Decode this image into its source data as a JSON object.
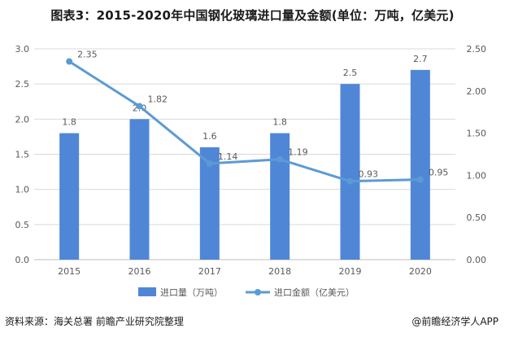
{
  "title": {
    "prefix": "图表3：",
    "main": "2015-2020年中国钢化玻璃进口量及金额(单位：万吨，亿美元)"
  },
  "chart_data": {
    "type": "bar",
    "title": "2015-2020年中国钢化玻璃进口量及金额(单位：万吨，亿美元)",
    "categories": [
      "2015",
      "2016",
      "2017",
      "2018",
      "2019",
      "2020"
    ],
    "series": [
      {
        "name": "进口量（万吨）",
        "type": "bar",
        "axis": "left",
        "values": [
          1.8,
          2.0,
          1.6,
          1.8,
          2.5,
          2.7
        ],
        "labels": [
          "1.8",
          "2.0",
          "1.6",
          "1.8",
          "2.5",
          "2.7"
        ]
      },
      {
        "name": "进口金额（亿美元）",
        "type": "line",
        "axis": "right",
        "values": [
          2.35,
          1.82,
          1.14,
          1.19,
          0.93,
          0.95
        ],
        "labels": [
          "2.35",
          "1.82",
          "1.14",
          "1.19",
          "0.93",
          "0.95"
        ]
      }
    ],
    "left_axis": {
      "min": 0,
      "max": 3.0,
      "ticks": [
        "0.0",
        "0.5",
        "1.0",
        "1.5",
        "2.0",
        "2.5",
        "3.0"
      ]
    },
    "right_axis": {
      "min": 0,
      "max": 2.5,
      "ticks": [
        "0.00",
        "0.50",
        "1.00",
        "1.50",
        "2.00",
        "2.50"
      ]
    },
    "xlabel": "",
    "ylabel": "",
    "legend_position": "bottom",
    "grid": true,
    "colors": {
      "bar": "#4f87d6",
      "line": "#5b9bd5",
      "grid": "#d9d9d9",
      "text": "#595959"
    }
  },
  "footer": {
    "source": "资料来源：海关总署 前瞻产业研究院整理",
    "brand": "@前瞻经济学人APP"
  }
}
